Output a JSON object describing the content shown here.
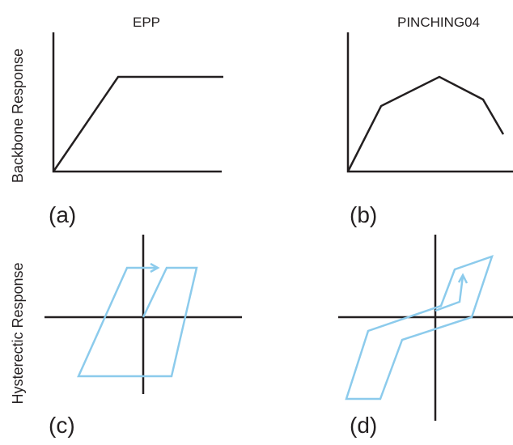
{
  "columns": {
    "0": "EPP",
    "1": "PINCHING04"
  },
  "rows": {
    "0": "Backbone Response",
    "1": "Hysterectic Response"
  },
  "panels": [
    "(a)",
    "(b)",
    "(c)",
    "(d)"
  ]
}
